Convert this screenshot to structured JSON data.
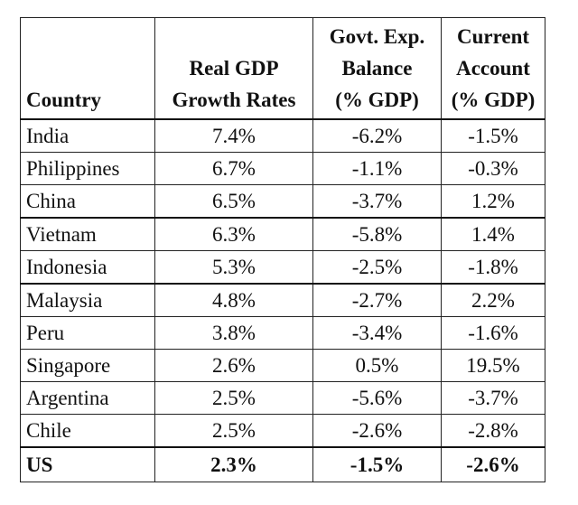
{
  "table": {
    "headers": {
      "country": [
        "Country"
      ],
      "gdp": [
        "",
        "Real GDP",
        "Growth Rates"
      ],
      "govt": [
        "Govt. Exp.",
        "Balance",
        "(% GDP)"
      ],
      "ca": [
        "Current",
        "Account",
        "(% GDP)"
      ]
    },
    "rows": [
      {
        "country": "India",
        "gdp": "7.4%",
        "govt": "-6.2%",
        "ca": "-1.5%"
      },
      {
        "country": "Philippines",
        "gdp": "6.7%",
        "govt": "-1.1%",
        "ca": "-0.3%"
      },
      {
        "country": "China",
        "gdp": "6.5%",
        "govt": "-3.7%",
        "ca": "1.2%"
      },
      {
        "country": "Vietnam",
        "gdp": "6.3%",
        "govt": "-5.8%",
        "ca": "1.4%"
      },
      {
        "country": "Indonesia",
        "gdp": "5.3%",
        "govt": "-2.5%",
        "ca": "-1.8%"
      },
      {
        "country": "Malaysia",
        "gdp": "4.8%",
        "govt": "-2.7%",
        "ca": "2.2%"
      },
      {
        "country": "Peru",
        "gdp": "3.8%",
        "govt": "-3.4%",
        "ca": "-1.6%"
      },
      {
        "country": "Singapore",
        "gdp": "2.6%",
        "govt": "0.5%",
        "ca": "19.5%"
      },
      {
        "country": "Argentina",
        "gdp": "2.5%",
        "govt": "-5.6%",
        "ca": "-3.7%"
      },
      {
        "country": "Chile",
        "gdp": "2.5%",
        "govt": "-2.6%",
        "ca": "-2.8%"
      }
    ],
    "total": {
      "country": "US",
      "gdp": "2.3%",
      "govt": "-1.5%",
      "ca": "-2.6%"
    }
  }
}
